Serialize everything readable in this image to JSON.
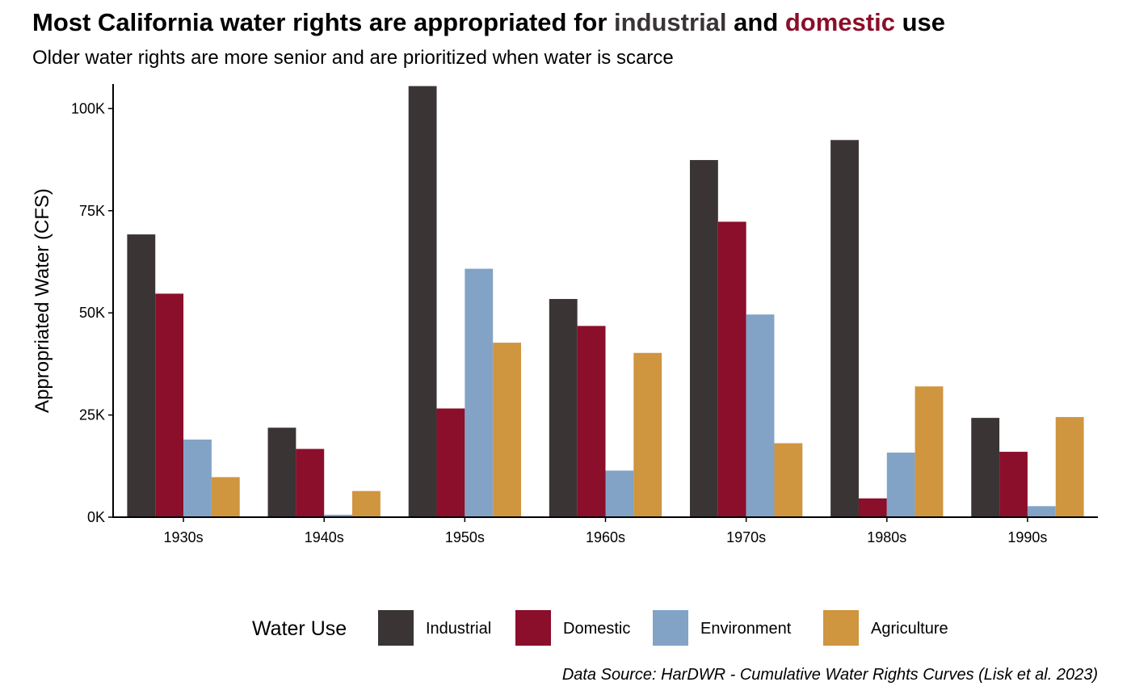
{
  "title": {
    "part1": "Most California water rights are appropriated for ",
    "part2": "industrial",
    "part3": " and ",
    "part4": "domestic",
    "part5": " use"
  },
  "subtitle": "Older water rights are more senior and are prioritized when water is scarce",
  "caption": "Data Source: HarDWR - Cumulative Water Rights Curves (Lisk et al. 2023)",
  "colors": {
    "industrial": "#3a3435",
    "domestic": "#8b0e2a",
    "environment": "#82a3c6",
    "agriculture": "#cf953f"
  },
  "chart_data": {
    "type": "bar",
    "title": "Most California water rights are appropriated for industrial and domestic use",
    "subtitle": "Older water rights are more senior and are prioritized when water is scarce",
    "xlabel": "",
    "ylabel": "Appropriated Water (CFS)",
    "ylim": [
      0,
      106000
    ],
    "yticks": [
      0,
      25000,
      50000,
      75000,
      100000
    ],
    "ytick_labels": [
      "0K",
      "25K",
      "50K",
      "75K",
      "100K"
    ],
    "categories": [
      "1930s",
      "1940s",
      "1950s",
      "1960s",
      "1970s",
      "1980s",
      "1990s"
    ],
    "legend_title": "Water Use",
    "legend_position": "bottom",
    "grid": false,
    "series": [
      {
        "name": "Industrial",
        "color": "#3a3435",
        "values": [
          69200,
          21900,
          105500,
          53400,
          87400,
          92300,
          24300
        ]
      },
      {
        "name": "Domestic",
        "color": "#8b0e2a",
        "values": [
          54700,
          16700,
          26600,
          46800,
          72300,
          4600,
          16000
        ]
      },
      {
        "name": "Environment",
        "color": "#82a3c6",
        "values": [
          19000,
          600,
          60800,
          11400,
          49600,
          15800,
          2700
        ]
      },
      {
        "name": "Agriculture",
        "color": "#cf953f",
        "values": [
          9800,
          6400,
          42700,
          40200,
          18100,
          32000,
          24500
        ]
      }
    ]
  }
}
